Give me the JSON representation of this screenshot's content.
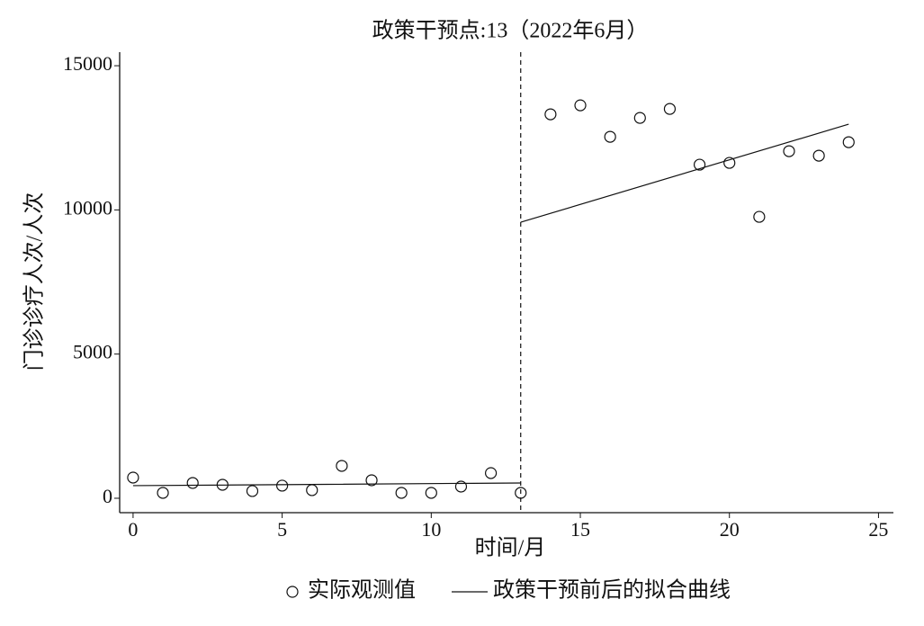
{
  "chart_data": {
    "type": "scatter",
    "title": "政策干预点:13（2022年6月）",
    "x_label": "时间/月",
    "y_label": "门诊诊疗人次/人次",
    "intervention_x": 13,
    "xlim": [
      -0.45,
      25.5
    ],
    "ylim": [
      -500,
      15470
    ],
    "xticks": [
      0,
      5,
      10,
      15,
      20,
      25
    ],
    "yticks": [
      0,
      5000,
      10000,
      15000
    ],
    "series": [
      {
        "name": "实际观测值",
        "type": "scatter",
        "color": "#111111",
        "x": [
          0,
          1,
          2,
          3,
          4,
          5,
          6,
          7,
          8,
          9,
          10,
          11,
          12,
          13,
          14,
          15,
          16,
          17,
          18,
          19,
          20,
          21,
          22,
          23,
          24
        ],
        "values": [
          717,
          187,
          530,
          468,
          250,
          437,
          281,
          1123,
          624,
          187,
          187,
          405,
          873,
          187,
          13315,
          13626,
          12535,
          13190,
          13502,
          11569,
          11631,
          9760,
          12036,
          11880,
          12348
        ]
      },
      {
        "name": "政策干预前后的拟合曲线",
        "type": "line",
        "color": "#111111",
        "x": [
          0,
          13,
          13,
          13,
          24
        ],
        "values": [
          437,
          530,
          null,
          9573,
          12972
        ]
      }
    ]
  }
}
